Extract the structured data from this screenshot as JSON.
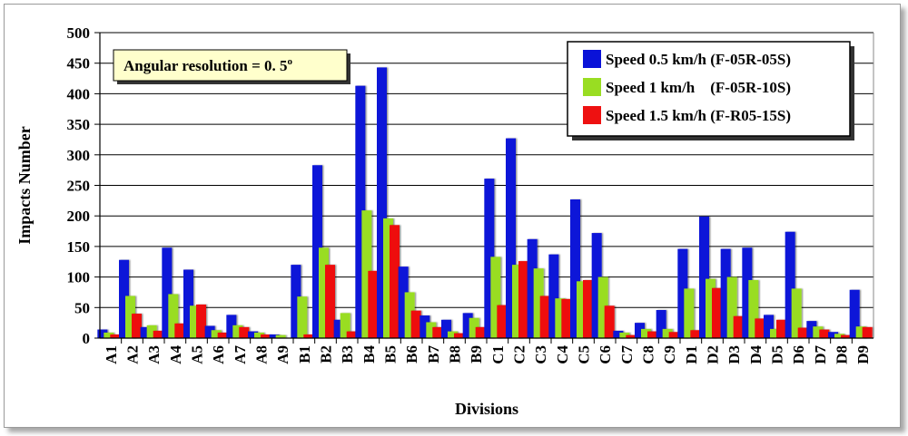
{
  "chart_data": {
    "type": "bar",
    "xlabel": "Divisions",
    "ylabel": "Impacts Number",
    "ylim": [
      0,
      500
    ],
    "yticks": [
      "0",
      "50",
      "100",
      "150",
      "200",
      "250",
      "300",
      "350",
      "400",
      "450",
      "500"
    ],
    "grid": "horizontal",
    "legend_position": "top-right",
    "annotation_prefix": "Angular resolution = 0. 5",
    "annotation_sup": "o",
    "categories": [
      "A1",
      "A2",
      "A3",
      "A4",
      "A5",
      "A6",
      "A7",
      "A8",
      "A9",
      "B1",
      "B2",
      "B3",
      "B4",
      "B5",
      "B6",
      "B7",
      "B8",
      "B9",
      "C1",
      "C2",
      "C3",
      "C4",
      "C5",
      "C6",
      "C7",
      "C8",
      "C9",
      "D1",
      "D2",
      "D3",
      "D4",
      "D5",
      "D6",
      "D7",
      "D8",
      "D9"
    ],
    "series": [
      {
        "name": "Speed 0.5 km/h (F-05R-05S)",
        "color": "#0a12d8",
        "values": [
          14,
          128,
          18,
          148,
          112,
          20,
          38,
          11,
          6,
          120,
          283,
          30,
          413,
          443,
          117,
          37,
          30,
          41,
          261,
          327,
          162,
          137,
          227,
          172,
          12,
          25,
          46,
          146,
          199,
          146,
          148,
          38,
          174,
          28,
          10,
          79
        ]
      },
      {
        "name": "Speed 1 km/h    (F-05R-10S)",
        "color": "#99dd22",
        "values": [
          9,
          69,
          21,
          72,
          53,
          13,
          21,
          9,
          5,
          68,
          148,
          41,
          209,
          196,
          75,
          26,
          11,
          33,
          133,
          120,
          114,
          65,
          93,
          100,
          9,
          15,
          15,
          81,
          97,
          100,
          95,
          15,
          81,
          19,
          7,
          19
        ]
      },
      {
        "name": "Speed 1.5 km/h (F-R05-15S)",
        "color": "#ee1111",
        "values": [
          6,
          40,
          12,
          24,
          55,
          9,
          18,
          6,
          0,
          6,
          120,
          11,
          110,
          185,
          45,
          18,
          8,
          18,
          54,
          126,
          69,
          64,
          95,
          53,
          5,
          11,
          10,
          13,
          82,
          36,
          32,
          30,
          17,
          14,
          5,
          18
        ]
      }
    ]
  }
}
